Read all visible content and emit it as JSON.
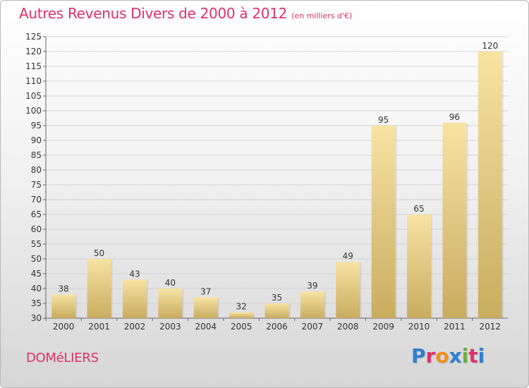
{
  "title": "Autres Revenus Divers de 2000 à 2012",
  "subtitle": "(en milliers d'€)",
  "commune": "DOMéLIERS",
  "brand": "Proxiti",
  "colors": {
    "title": "#e0316a",
    "bar_light": "#f7e3a3",
    "bar_dark": "#c9ac5f",
    "brand_letters": [
      "#2f7fd0",
      "#e0316a",
      "#f0921e",
      "#2f7fd0",
      "#6ab23a",
      "#e0316a",
      "#2f7fd0"
    ]
  },
  "chart_data": {
    "type": "bar",
    "title": "Autres Revenus Divers de 2000 à 2012",
    "subtitle": "(en milliers d'€)",
    "categories": [
      "2000",
      "2001",
      "2002",
      "2003",
      "2004",
      "2005",
      "2006",
      "2007",
      "2008",
      "2009",
      "2010",
      "2011",
      "2012"
    ],
    "values": [
      38,
      50,
      43,
      40,
      37,
      32,
      35,
      39,
      49,
      95,
      65,
      96,
      120
    ],
    "data_labels": [
      "38",
      "50",
      "43",
      "40",
      "37",
      "32",
      "35",
      "39",
      "49",
      "95",
      "65",
      "96",
      "120"
    ],
    "ylim": [
      30,
      125
    ],
    "yticks": [
      30,
      35,
      40,
      45,
      50,
      55,
      60,
      65,
      70,
      75,
      80,
      85,
      90,
      95,
      100,
      105,
      110,
      115,
      120,
      125
    ],
    "grid": true,
    "legend": false
  }
}
